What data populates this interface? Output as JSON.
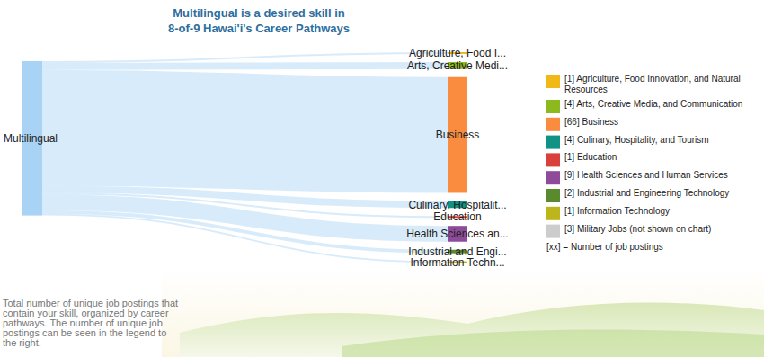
{
  "chart_data": {
    "type": "sankey",
    "title": [
      "Multilingual is a desired skill in",
      "8-of-9 Hawai'i's Career Pathways"
    ],
    "source": {
      "label": "Multilingual",
      "color": "#a9d3f5"
    },
    "categories": [
      "Agriculture, Food I...",
      "Arts, Creative Medi...",
      "Business",
      "Culinary, Hospitalit...",
      "Education",
      "Health Sciences an...",
      "Industrial and Engi...",
      "Information Techn..."
    ],
    "values": [
      1,
      4,
      66,
      4,
      1,
      9,
      2,
      1
    ],
    "colors": [
      "#f0b918",
      "#8cb91e",
      "#f98c3f",
      "#109385",
      "#d9403c",
      "#8e4b9a",
      "#5a8a2e",
      "#bdb51c"
    ],
    "legend_items": [
      {
        "label": "[1] Agriculture, Food Innovation, and Natural Resources",
        "color": "#f0b918"
      },
      {
        "label": "[4] Arts, Creative Media, and Communication",
        "color": "#8cb91e"
      },
      {
        "label": "[66] Business",
        "color": "#f98c3f"
      },
      {
        "label": "[4] Culinary, Hospitality, and Tourism",
        "color": "#109385"
      },
      {
        "label": "[1] Education",
        "color": "#d9403c"
      },
      {
        "label": "[9] Health Sciences and Human Services",
        "color": "#8e4b9a"
      },
      {
        "label": "[2] Industrial and Engineering Technology",
        "color": "#5a8a2e"
      },
      {
        "label": "[1] Information Technology",
        "color": "#bdb51c"
      },
      {
        "label": "[3] Military Jobs (not shown on chart)",
        "color": "#cccccc"
      }
    ],
    "legend_note": "[xx] = Number of job postings",
    "annotation": "Total number of unique job postings that contain your skill, organized by career pathways.  The number of unique job postings can be seen in the legend to the right."
  }
}
